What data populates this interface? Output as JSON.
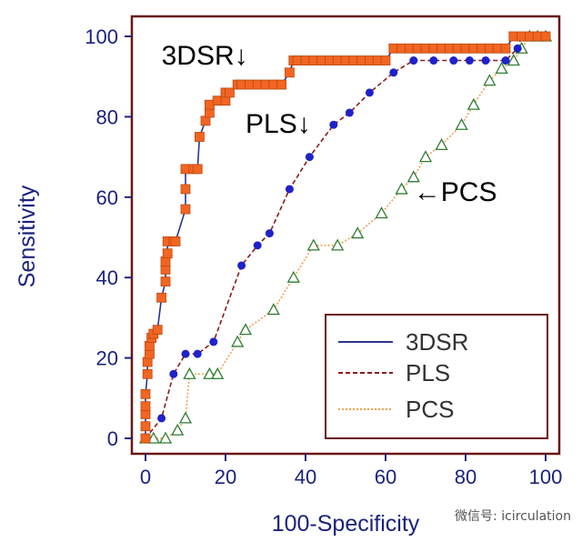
{
  "chart_data": {
    "type": "line",
    "title": "",
    "xlabel": "100-Specificity",
    "ylabel": "Sensitivity",
    "xlim": [
      0,
      100
    ],
    "ylim": [
      0,
      100
    ],
    "xticks": [
      "0",
      "20",
      "40",
      "60",
      "80",
      "100"
    ],
    "yticks": [
      "0",
      "20",
      "40",
      "60",
      "80",
      "100"
    ],
    "grid": false,
    "legend_position": "bottom-right",
    "series": [
      {
        "name": "3DSR",
        "marker": "square",
        "marker_color": "#f26522",
        "line_color": "#283593",
        "line_style": "solid",
        "points": [
          [
            0,
            0
          ],
          [
            0,
            3
          ],
          [
            0,
            6
          ],
          [
            0,
            8
          ],
          [
            0,
            11
          ],
          [
            0.5,
            16
          ],
          [
            0.5,
            19
          ],
          [
            1,
            21
          ],
          [
            1,
            23
          ],
          [
            1.5,
            25
          ],
          [
            2,
            26
          ],
          [
            3,
            27
          ],
          [
            4,
            35
          ],
          [
            5,
            39
          ],
          [
            5,
            42
          ],
          [
            5,
            44
          ],
          [
            5.5,
            46
          ],
          [
            5.5,
            49
          ],
          [
            7,
            49
          ],
          [
            7.5,
            49
          ],
          [
            10,
            57
          ],
          [
            10,
            62
          ],
          [
            10,
            67
          ],
          [
            12,
            67
          ],
          [
            13,
            67
          ],
          [
            13.5,
            75
          ],
          [
            15,
            79
          ],
          [
            16,
            81
          ],
          [
            16,
            83
          ],
          [
            18,
            84
          ],
          [
            20,
            84
          ],
          [
            20,
            86
          ],
          [
            21,
            86
          ],
          [
            23,
            88
          ],
          [
            24,
            88
          ],
          [
            26,
            88
          ],
          [
            28,
            88
          ],
          [
            30,
            88
          ],
          [
            32,
            88
          ],
          [
            34,
            88
          ],
          [
            36,
            91
          ],
          [
            37,
            94
          ],
          [
            38,
            94
          ],
          [
            40,
            94
          ],
          [
            42,
            94
          ],
          [
            44,
            94
          ],
          [
            46,
            94
          ],
          [
            48,
            94
          ],
          [
            50,
            94
          ],
          [
            52,
            94
          ],
          [
            54,
            94
          ],
          [
            56,
            94
          ],
          [
            58,
            94
          ],
          [
            60,
            94
          ],
          [
            62,
            97
          ],
          [
            64,
            97
          ],
          [
            66,
            97
          ],
          [
            68,
            97
          ],
          [
            70,
            97
          ],
          [
            72,
            97
          ],
          [
            74,
            97
          ],
          [
            76,
            97
          ],
          [
            78,
            97
          ],
          [
            80,
            97
          ],
          [
            82,
            97
          ],
          [
            84,
            97
          ],
          [
            86,
            97
          ],
          [
            88,
            97
          ],
          [
            90,
            97
          ],
          [
            92,
            100
          ],
          [
            94,
            100
          ],
          [
            96,
            100
          ],
          [
            98,
            100
          ],
          [
            100,
            100
          ]
        ]
      },
      {
        "name": "PLS",
        "marker": "circle",
        "marker_color": "#1e22c9",
        "line_color": "#8b1a1a",
        "line_style": "dashed",
        "points": [
          [
            0,
            0
          ],
          [
            4,
            5
          ],
          [
            7,
            16
          ],
          [
            10,
            21
          ],
          [
            13,
            21
          ],
          [
            17,
            24
          ],
          [
            24,
            43
          ],
          [
            28,
            48
          ],
          [
            31,
            51
          ],
          [
            36,
            62
          ],
          [
            41,
            70
          ],
          [
            47,
            78
          ],
          [
            51,
            81
          ],
          [
            56,
            86
          ],
          [
            62,
            91
          ],
          [
            67,
            94
          ],
          [
            72,
            94
          ],
          [
            77,
            94
          ],
          [
            81,
            94
          ],
          [
            85,
            94
          ],
          [
            90,
            94
          ],
          [
            93,
            97
          ],
          [
            94,
            100
          ],
          [
            100,
            100
          ]
        ]
      },
      {
        "name": "PCS",
        "marker": "triangle",
        "marker_color": "#2e7d32",
        "line_color": "#f0a050",
        "line_style": "dotted",
        "points": [
          [
            0,
            0
          ],
          [
            2,
            0
          ],
          [
            5,
            0
          ],
          [
            8,
            2
          ],
          [
            10,
            5
          ],
          [
            11,
            16
          ],
          [
            16,
            16
          ],
          [
            18,
            16
          ],
          [
            23,
            24
          ],
          [
            25,
            27
          ],
          [
            32,
            32
          ],
          [
            37,
            40
          ],
          [
            42,
            48
          ],
          [
            48,
            48
          ],
          [
            53,
            51
          ],
          [
            59,
            56
          ],
          [
            64,
            62
          ],
          [
            67,
            65
          ],
          [
            70,
            70
          ],
          [
            74,
            73
          ],
          [
            79,
            78
          ],
          [
            82,
            83
          ],
          [
            86,
            89
          ],
          [
            89,
            92
          ],
          [
            92,
            94
          ],
          [
            94,
            97
          ],
          [
            96,
            100
          ],
          [
            98,
            100
          ],
          [
            100,
            100
          ]
        ]
      }
    ],
    "annotations": [
      {
        "text": "3DSR↓",
        "x": 4,
        "y": 93
      },
      {
        "text": "PLS↓",
        "x": 25,
        "y": 76
      },
      {
        "text": "←PCS",
        "x": 67,
        "y": 59
      }
    ],
    "watermark": "微信号: icirculation",
    "colors": {
      "axis": "#1a237e",
      "frame": "#6b1414",
      "legend_frame": "#6b1414"
    }
  }
}
